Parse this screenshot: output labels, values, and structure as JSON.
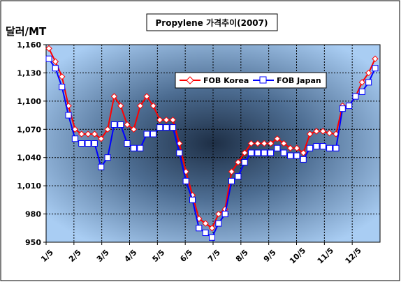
{
  "chart_data": {
    "type": "line",
    "title": "Propylene 가격추이(2007)",
    "ylabel": "달러/MT",
    "xlabel": "",
    "ylim": [
      950,
      1160
    ],
    "yticks": [
      950,
      980,
      1010,
      1040,
      1070,
      1100,
      1130,
      1160
    ],
    "ytick_labels": [
      "950",
      "980",
      "1,010",
      "1,040",
      "1,070",
      "1,100",
      "1,130",
      "1,160"
    ],
    "xtick_labels": [
      "1/5",
      "2/5",
      "3/5",
      "4/5",
      "5/5",
      "6/5",
      "7/5",
      "8/5",
      "9/5",
      "10/5",
      "11/5",
      "12/5"
    ],
    "grid": true,
    "legend_position": "upper-right",
    "series": [
      {
        "name": "FOB Korea",
        "color": "#ff0000",
        "marker": "diamond",
        "values": [
          1156,
          1142,
          1126,
          1095,
          1070,
          1065,
          1065,
          1065,
          1060,
          1070,
          1105,
          1095,
          1075,
          1070,
          1095,
          1105,
          1095,
          1080,
          1080,
          1080,
          1055,
          1025,
          1000,
          975,
          970,
          965,
          980,
          985,
          1025,
          1035,
          1045,
          1055,
          1055,
          1055,
          1055,
          1060,
          1055,
          1050,
          1050,
          1045,
          1065,
          1068,
          1068,
          1066,
          1065,
          1095,
          1095,
          1105,
          1120,
          1130,
          1145
        ]
      },
      {
        "name": "FOB Japan",
        "color": "#0000ff",
        "marker": "square",
        "values": [
          1145,
          1135,
          1115,
          1085,
          1060,
          1055,
          1055,
          1055,
          1030,
          1040,
          1075,
          1075,
          1055,
          1050,
          1050,
          1065,
          1065,
          1072,
          1072,
          1072,
          1045,
          1015,
          995,
          965,
          960,
          955,
          970,
          980,
          1015,
          1020,
          1035,
          1045,
          1045,
          1045,
          1045,
          1050,
          1045,
          1042,
          1042,
          1038,
          1050,
          1052,
          1052,
          1050,
          1050,
          1092,
          1095,
          1105,
          1110,
          1120,
          1135
        ]
      }
    ]
  }
}
